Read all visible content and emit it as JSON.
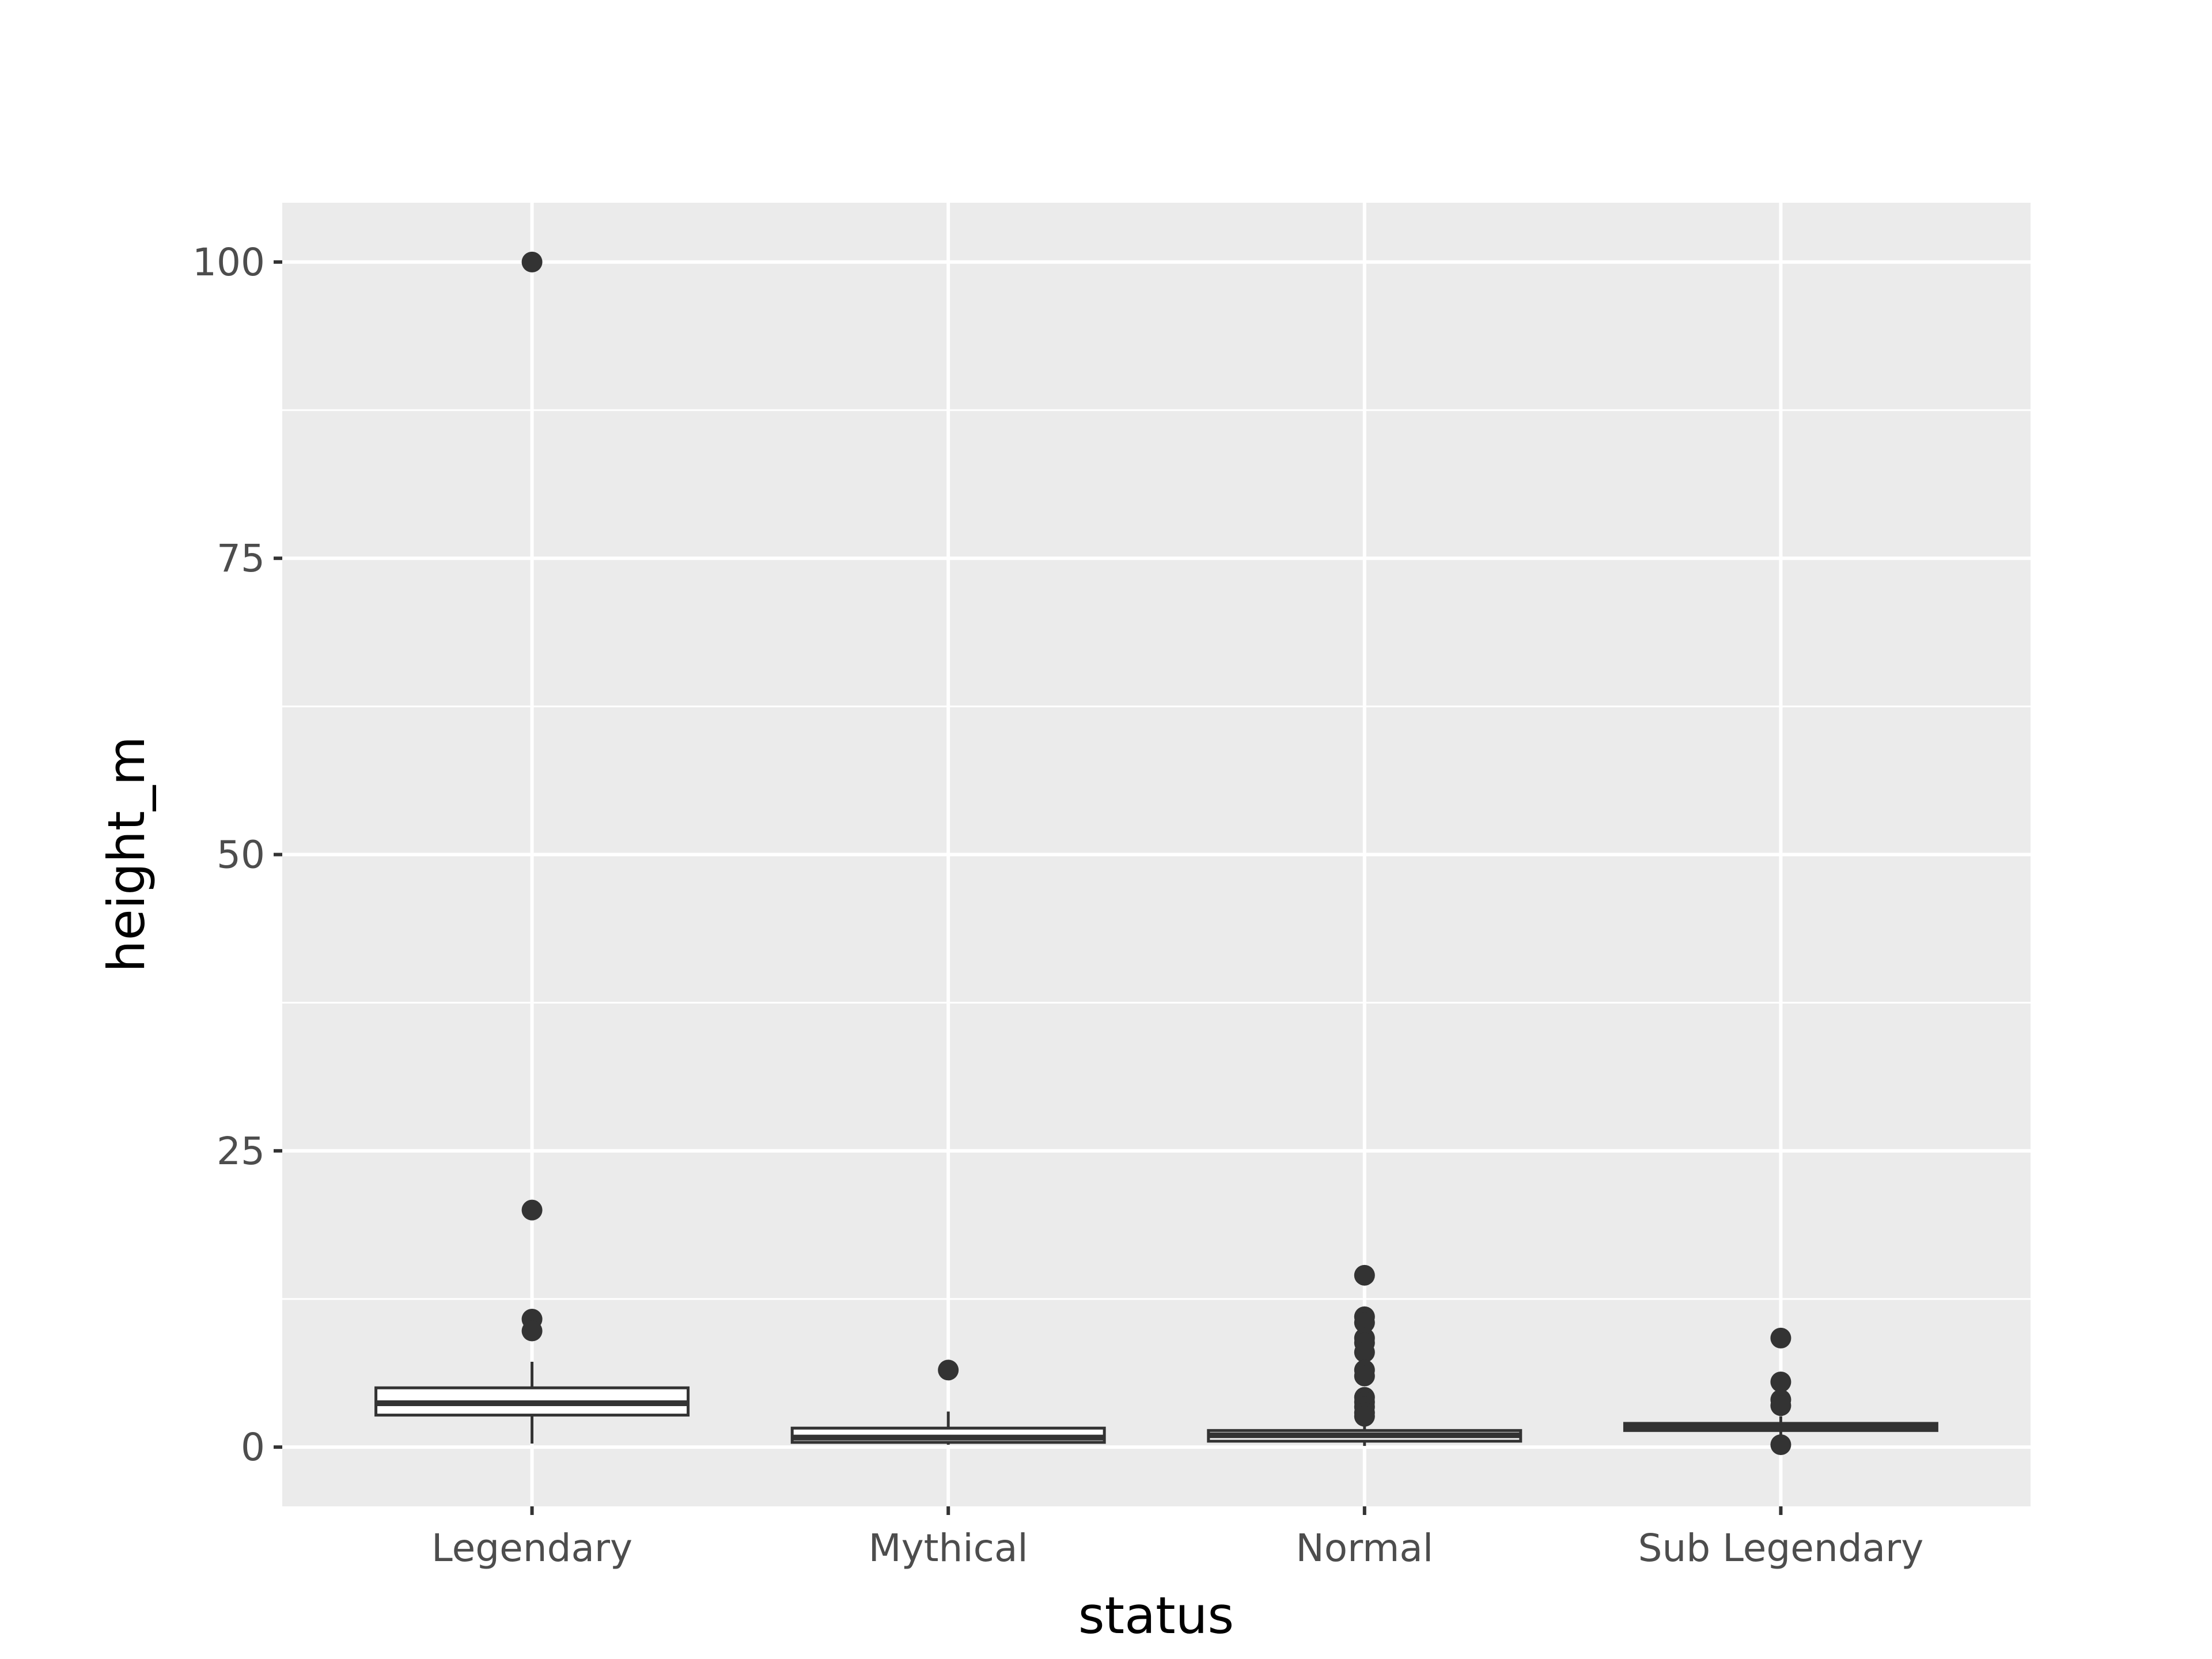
{
  "chart_data": {
    "type": "box",
    "title": "",
    "xlabel": "status",
    "ylabel": "height_m",
    "ylim": [
      -5,
      105
    ],
    "yticks": [
      0,
      25,
      50,
      75,
      100
    ],
    "ytick_labels": [
      "0",
      "25",
      "50",
      "75",
      "100"
    ],
    "grid": true,
    "legend": "none",
    "colors": {
      "panel": "#ebebeb",
      "grid": "#ffffff",
      "box_stroke": "#333333",
      "box_fill": "#ffffff",
      "axis_text": "#4d4d4d",
      "tick": "#333333"
    },
    "categories": [
      "Legendary",
      "Mythical",
      "Normal",
      "Sub Legendary"
    ],
    "boxes": [
      {
        "category": "Legendary",
        "whisker_low": 0.3,
        "q1": 2.7,
        "median": 3.7,
        "q3": 5.0,
        "whisker_high": 7.2,
        "outliers": [
          100,
          20,
          10.8,
          9.8
        ]
      },
      {
        "category": "Mythical",
        "whisker_low": 0.2,
        "q1": 0.4,
        "median": 0.8,
        "q3": 1.6,
        "whisker_high": 3.0,
        "outliers": [
          6.5
        ]
      },
      {
        "category": "Normal",
        "whisker_low": 0.1,
        "q1": 0.5,
        "median": 1.0,
        "q3": 1.4,
        "whisker_high": 2.2,
        "outliers": [
          14.5,
          11.0,
          10.5,
          9.2,
          8.8,
          8.0,
          6.5,
          6.0,
          4.2,
          3.8,
          3.4,
          2.9,
          2.6
        ]
      },
      {
        "category": "Sub Legendary",
        "whisker_low": 1.0,
        "q1": 1.4,
        "median": 1.7,
        "q3": 2.0,
        "whisker_high": 2.6,
        "outliers": [
          9.2,
          5.5,
          4.0,
          3.5,
          0.2
        ]
      }
    ]
  }
}
